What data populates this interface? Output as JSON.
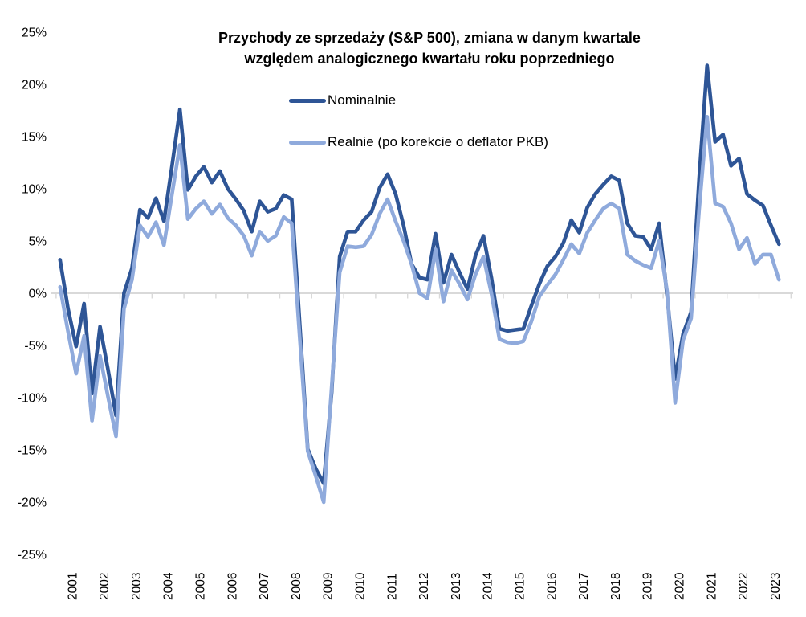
{
  "title": {
    "line1": "Przychody ze sprzedaży (S&P 500), zmiana w danym kwartale",
    "line2": "względem analogicznego kwartału roku poprzedniego"
  },
  "legend": [
    {
      "label": "Nominalnie",
      "color": "#2E5596"
    },
    {
      "label": "Realnie (po korekcie o deflator PKB)",
      "color": "#8FAADC"
    }
  ],
  "colors": {
    "nominal_line": "#2E5596",
    "real_line": "#8FAADC",
    "axis_line": "#D9D9D9",
    "text": "#000000"
  },
  "chart_data": {
    "type": "line",
    "title": "Przychody ze sprzedaży (S&P 500), zmiana w danym kwartale względem analogicznego kwartału roku poprzedniego",
    "frequency": "quarterly",
    "x_start": "2001-Q1",
    "x_end": "2023-Q3",
    "xlabel": "",
    "ylabel": "",
    "ylim": [
      -25,
      25
    ],
    "grid": "zero-axis-only",
    "legend_position": "top-left-of-plot",
    "x_tick_labels": [
      "2001",
      "2002",
      "2003",
      "2004",
      "2005",
      "2006",
      "2007",
      "2008",
      "2009",
      "2010",
      "2011",
      "2012",
      "2013",
      "2014",
      "2015",
      "2016",
      "2017",
      "2018",
      "2019",
      "2020",
      "2021",
      "2022",
      "2023"
    ],
    "y_ticks": [
      {
        "value": 25,
        "label": "25%"
      },
      {
        "value": 20,
        "label": "20%"
      },
      {
        "value": 15,
        "label": "15%"
      },
      {
        "value": 10,
        "label": "10%"
      },
      {
        "value": 5,
        "label": "5%"
      },
      {
        "value": 0,
        "label": "0%"
      },
      {
        "value": -5,
        "label": "-5%"
      },
      {
        "value": -10,
        "label": "-10%"
      },
      {
        "value": -15,
        "label": "-15%"
      },
      {
        "value": -20,
        "label": "-20%"
      },
      {
        "value": -25,
        "label": "-25%"
      }
    ],
    "series": [
      {
        "name": "Nominalnie",
        "color": "#2E5596",
        "values": [
          3.2,
          -1.5,
          -5.1,
          -1.0,
          -9.6,
          -3.2,
          -7.3,
          -11.7,
          0.0,
          2.4,
          8.0,
          7.2,
          9.1,
          6.9,
          12.1,
          17.6,
          9.9,
          11.2,
          12.1,
          10.6,
          11.7,
          10.0,
          9.0,
          7.9,
          5.9,
          8.8,
          7.8,
          8.1,
          9.4,
          9.0,
          -3.0,
          -14.9,
          -16.8,
          -18.2,
          -9.5,
          3.5,
          5.9,
          5.9,
          7.0,
          7.8,
          10.1,
          11.4,
          9.5,
          6.5,
          2.8,
          1.5,
          1.3,
          5.7,
          1.0,
          3.7,
          2.0,
          0.4,
          3.6,
          5.5,
          1.5,
          -3.4,
          -3.6,
          -3.5,
          -3.4,
          -1.2,
          0.9,
          2.6,
          3.5,
          4.8,
          7.0,
          5.8,
          8.2,
          9.5,
          10.4,
          11.2,
          10.8,
          6.7,
          5.5,
          5.4,
          4.2,
          6.7,
          -0.2,
          -8.2,
          -3.9,
          -1.8,
          11.0,
          21.8,
          14.5,
          15.2,
          12.2,
          12.9,
          9.5,
          8.9,
          8.4,
          6.5,
          4.7
        ]
      },
      {
        "name": "Realnie (po korekcie o deflator PKB)",
        "color": "#8FAADC",
        "values": [
          0.6,
          -3.7,
          -7.7,
          -4.1,
          -12.2,
          -6.0,
          -9.9,
          -13.7,
          -1.5,
          1.3,
          6.5,
          5.4,
          6.8,
          4.6,
          9.4,
          14.2,
          7.1,
          8.1,
          8.8,
          7.6,
          8.5,
          7.2,
          6.5,
          5.5,
          3.6,
          5.9,
          5.0,
          5.5,
          7.3,
          6.7,
          -4.3,
          -15.1,
          -17.5,
          -20.0,
          -9.0,
          2.0,
          4.5,
          4.4,
          4.5,
          5.6,
          7.6,
          9.0,
          6.9,
          5.0,
          2.8,
          0.0,
          -0.5,
          4.2,
          -0.8,
          2.2,
          0.9,
          -0.6,
          1.8,
          3.5,
          0.0,
          -4.4,
          -4.7,
          -4.8,
          -4.6,
          -2.7,
          -0.3,
          0.8,
          1.8,
          3.2,
          4.7,
          3.8,
          5.8,
          7.0,
          8.1,
          8.6,
          8.1,
          3.7,
          3.1,
          2.7,
          2.4,
          5.0,
          0.2,
          -10.5,
          -4.5,
          -2.4,
          8.0,
          16.9,
          8.6,
          8.3,
          6.7,
          4.2,
          5.3,
          2.8,
          3.7,
          3.7,
          1.3
        ]
      }
    ]
  }
}
